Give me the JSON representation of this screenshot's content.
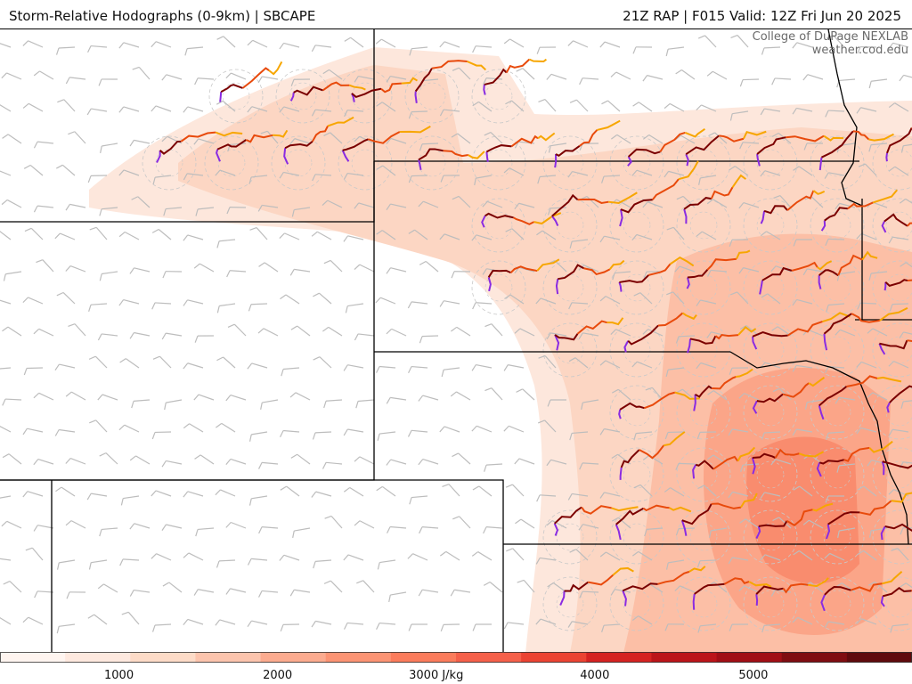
{
  "header": {
    "title_left": "Storm-Relative Hodographs (0-9km) | SBCAPE",
    "title_right": "21Z RAP | F015 Valid: 12Z Fri Jun 20 2025"
  },
  "credit": {
    "line1": "College of DuPage NEXLAB",
    "line2": "weather.cod.edu"
  },
  "colorbar": {
    "ticks": [
      {
        "label": "1000",
        "value": 1000
      },
      {
        "label": "2000",
        "value": 2000
      },
      {
        "label": "3000 J/kg",
        "value": 3000
      },
      {
        "label": "4000",
        "value": 4000
      },
      {
        "label": "5000",
        "value": 5000
      }
    ],
    "range": [
      250,
      6000
    ],
    "colors": [
      "#fff5f0",
      "#fee9df",
      "#fddbc7",
      "#fcc4ad",
      "#fcab8f",
      "#fc9474",
      "#fb7c5c",
      "#f5604a",
      "#eb4332",
      "#d52221",
      "#bb1419",
      "#a10e15",
      "#7f0d11",
      "#5f0a0d"
    ]
  },
  "legend_colors": {
    "hodograph_low": "#7b0000",
    "hodograph_mid": "#e84a0c",
    "hodograph_upper": "#f7a600",
    "hodograph_top": "#8a2be2",
    "wind_barbs": "#bdbdbd",
    "borders": "#000000",
    "range_rings": "#c9c9c9"
  }
}
